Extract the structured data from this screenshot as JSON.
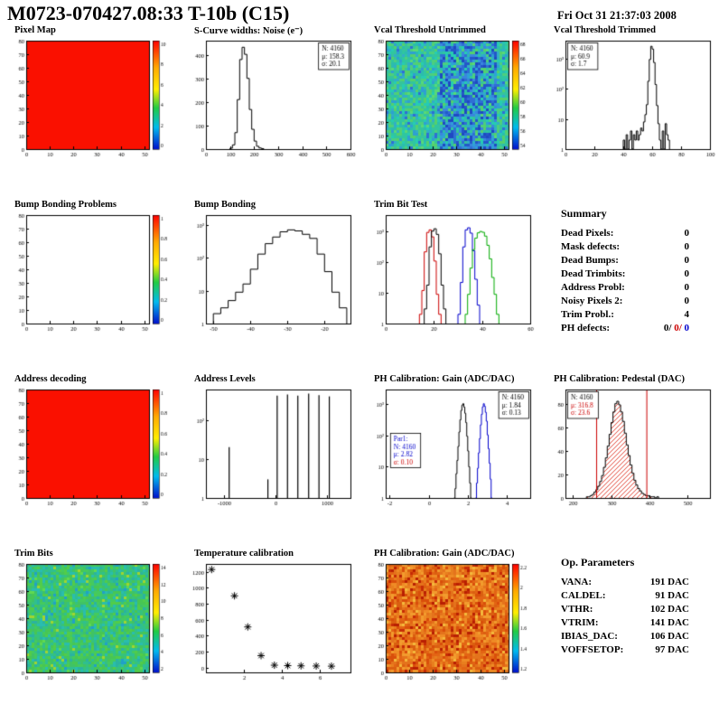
{
  "header": {
    "title": "M0723-070427.08:33 T-10b (C15)",
    "date": "Fri Oct 31 21:37:03 2008"
  },
  "summary": {
    "title": "Summary",
    "rows": [
      {
        "label": "Dead Pixels:",
        "value": "0"
      },
      {
        "label": "Mask defects:",
        "value": "0"
      },
      {
        "label": "Dead Bumps:",
        "value": "0"
      },
      {
        "label": "Dead Trimbits:",
        "value": "0"
      },
      {
        "label": "Address Probl:",
        "value": "0"
      },
      {
        "label": "Noisy Pixels 2:",
        "value": "0"
      },
      {
        "label": "Trim Probl.:",
        "value": "4"
      }
    ],
    "ph_defects": {
      "label": "PH defects:",
      "parts": [
        {
          "text": "0/",
          "color": "#000000"
        },
        {
          "text": " 0/",
          "color": "#cc0000"
        },
        {
          "text": " 0",
          "color": "#0000cc"
        }
      ]
    }
  },
  "op_parameters": {
    "title": "Op. Parameters",
    "rows": [
      {
        "label": "VANA:",
        "value": "191 DAC"
      },
      {
        "label": "CALDEL:",
        "value": "91 DAC"
      },
      {
        "label": "VTHR:",
        "value": "102 DAC"
      },
      {
        "label": "VTRIM:",
        "value": "141 DAC"
      },
      {
        "label": "IBIAS_DAC:",
        "value": "106 DAC"
      },
      {
        "label": "VOFFSETOP:",
        "value": "97 DAC"
      }
    ]
  },
  "chart_data": [
    {
      "id": "pixel-map",
      "title": "Pixel Map",
      "type": "heatmap",
      "x": {
        "min": 0,
        "max": 52,
        "ticks": [
          0,
          10,
          20,
          30,
          40,
          50
        ]
      },
      "y": {
        "min": 0,
        "max": 80,
        "ticks": [
          0,
          10,
          20,
          30,
          40,
          50,
          60,
          70,
          80
        ]
      },
      "palette": {
        "base": [
          "#fa1000"
        ]
      },
      "colorbar": {
        "labels": [
          "10",
          "8",
          "6",
          "4",
          "2",
          "0"
        ]
      }
    },
    {
      "id": "scurve-noise",
      "title": "S-Curve widths: Noise (e⁻)",
      "type": "hist",
      "x": {
        "min": 0,
        "max": 600,
        "ticks": [
          0,
          100,
          200,
          300,
          400,
          500,
          600
        ]
      },
      "y": {
        "min": 0,
        "max": 460,
        "ticks": [
          0,
          100,
          200,
          300,
          400
        ]
      },
      "series": [
        {
          "name": "noise",
          "color": "#000000",
          "bins": {
            "x0": 100,
            "dx": 10,
            "values": [
              4,
              18,
              70,
              210,
              380,
              432,
              402,
              300,
              168,
              84,
              34,
              12,
              5,
              2
            ]
          }
        }
      ],
      "stats": {
        "pos": "tr",
        "lines": [
          {
            "text": "N: 4160",
            "color": "#000000"
          },
          {
            "text": "μ: 158.3",
            "color": "#000000"
          },
          {
            "text": "σ: 20.1",
            "color": "#000000"
          }
        ]
      }
    },
    {
      "id": "vcal-untrimmed",
      "title": "Vcal Threshold Untrimmed",
      "type": "heatmap",
      "x": {
        "min": 0,
        "max": 52,
        "ticks": [
          0,
          10,
          20,
          30,
          40,
          50
        ]
      },
      "y": {
        "min": 0,
        "max": 80,
        "ticks": [
          0,
          10,
          20,
          30,
          40,
          50,
          60,
          70,
          80
        ]
      },
      "palette": {
        "base": [
          "#35c49b",
          "#2bbcae",
          "#2fc6a0",
          "#4ccf7f",
          "#31aec7",
          "#2e9fd2",
          "#54d06d",
          "#26ccb2"
        ],
        "accent": [
          "#2f6fd4",
          "#2457c9",
          "#3a86dd",
          "#1f49c2",
          "#2fa0d8"
        ],
        "accent_zone": [
          0.42,
          0.9
        ],
        "accent_prob": 0.55,
        "speckle": [
          "#2f6fd4",
          "#58d977"
        ],
        "speckle_prob": 0.1
      },
      "colorbar": {
        "labels": [
          "68",
          "66",
          "64",
          "62",
          "60",
          "58",
          "56",
          "54"
        ]
      }
    },
    {
      "id": "vcal-trimmed",
      "title": "Vcal Threshold Trimmed",
      "type": "hist",
      "x": {
        "min": 0,
        "max": 100,
        "ticks": [
          0,
          20,
          40,
          60,
          80,
          100
        ]
      },
      "y": {
        "min": 1,
        "max": 4000,
        "scale": "log",
        "decades": [
          [
            1,
            "1"
          ],
          [
            10,
            "10"
          ],
          [
            100,
            "10²"
          ],
          [
            1000,
            "10³"
          ]
        ]
      },
      "series": [
        {
          "name": "threshold",
          "color": "#000000",
          "bins": {
            "x0": 40,
            "dx": 1,
            "values": [
              2,
              0,
              3,
              0,
              2,
              4,
              1,
              3,
              2,
              4,
              2,
              3,
              5,
              4,
              8,
              14,
              30,
              180,
              950,
              2600,
              2100,
              750,
              140,
              28,
              7,
              2,
              0,
              4,
              0,
              7,
              3,
              2
            ]
          }
        }
      ],
      "stats": {
        "pos": "tl",
        "lines": [
          {
            "text": "N: 4160",
            "color": "#000000"
          },
          {
            "text": "μ: 60.9",
            "color": "#000000"
          },
          {
            "text": "σ: 1.7",
            "color": "#000000"
          }
        ]
      }
    },
    {
      "id": "bump-problems",
      "title": "Bump Bonding Problems",
      "type": "empty",
      "x": {
        "min": 0,
        "max": 52,
        "ticks": [
          0,
          10,
          20,
          30,
          40,
          50
        ]
      },
      "y": {
        "min": 0,
        "max": 80,
        "ticks": [
          0,
          10,
          20,
          30,
          40,
          50,
          60,
          70,
          80
        ]
      },
      "colorbar": {
        "labels": [
          "1",
          "0.8",
          "0.6",
          "0.4",
          "0.2",
          "0"
        ]
      }
    },
    {
      "id": "bump-bonding",
      "title": "Bump Bonding",
      "type": "hist",
      "x": {
        "min": -52,
        "max": -13,
        "ticks": [
          -50,
          -40,
          -30,
          -20
        ]
      },
      "y": {
        "min": 1,
        "max": 2000,
        "scale": "log",
        "decades": [
          [
            1,
            "1"
          ],
          [
            10,
            "10"
          ],
          [
            100,
            "10²"
          ],
          [
            1000,
            "10³"
          ]
        ]
      },
      "series": [
        {
          "name": "bump",
          "color": "#000000",
          "bins": {
            "x0": -50,
            "dx": 2,
            "values": [
              2,
              3,
              5,
              9,
              16,
              45,
              130,
              270,
              430,
              620,
              710,
              660,
              520,
              390,
              130,
              38,
              9,
              3
            ]
          }
        }
      ]
    },
    {
      "id": "trim-bit-test",
      "title": "Trim Bit Test",
      "type": "hist",
      "x": {
        "min": 0,
        "max": 60,
        "ticks": [
          0,
          20,
          40,
          60
        ]
      },
      "y": {
        "min": 1,
        "max": 3500,
        "scale": "log",
        "decades": [
          [
            1,
            "1"
          ],
          [
            10,
            "10"
          ],
          [
            100,
            "10²"
          ],
          [
            1000,
            "10³"
          ]
        ]
      },
      "series": [
        {
          "name": "trim-red",
          "color": "#cc0000",
          "bins": {
            "x0": 14,
            "dx": 1,
            "values": [
              2,
              12,
              220,
              950,
              1150,
              680,
              110,
              9,
              2
            ]
          }
        },
        {
          "name": "trim-black",
          "color": "#000000",
          "bins": {
            "x0": 16,
            "dx": 1,
            "values": [
              3,
              18,
              320,
              1050,
              1250,
              820,
              190,
              18,
              3
            ]
          }
        },
        {
          "name": "trim-blue",
          "color": "#0000cc",
          "bins": {
            "x0": 30,
            "dx": 1,
            "values": [
              2,
              22,
              320,
              1150,
              1350,
              900,
              240,
              28,
              4
            ]
          }
        },
        {
          "name": "trim-green",
          "color": "#00aa00",
          "bins": {
            "x0": 33,
            "dx": 1,
            "values": [
              2,
              9,
              65,
              260,
              620,
              920,
              1020,
              960,
              720,
              360,
              130,
              32,
              9,
              2
            ]
          }
        }
      ]
    },
    {
      "id": "address-decoding",
      "title": "Address decoding",
      "type": "heatmap",
      "x": {
        "min": 0,
        "max": 52,
        "ticks": [
          0,
          10,
          20,
          30,
          40,
          50
        ]
      },
      "y": {
        "min": 0,
        "max": 80,
        "ticks": [
          0,
          10,
          20,
          30,
          40,
          50,
          60,
          70,
          80
        ]
      },
      "palette": {
        "base": [
          "#fa1000"
        ]
      },
      "colorbar": {
        "labels": [
          "1",
          "0.8",
          "0.6",
          "0.4",
          "0.2",
          "0"
        ]
      }
    },
    {
      "id": "address-levels",
      "title": "Address Levels",
      "type": "spikes",
      "x": {
        "min": -1350,
        "max": 1450,
        "ticks": [
          -1000,
          0,
          1000
        ]
      },
      "y": {
        "min": 1,
        "max": 600,
        "scale": "log",
        "decades": [
          [
            1,
            "1"
          ],
          [
            10,
            "10"
          ],
          [
            100,
            "10²"
          ]
        ]
      },
      "spikes": [
        [
          -900,
          20
        ],
        [
          -150,
          3
        ],
        [
          30,
          420
        ],
        [
          230,
          450
        ],
        [
          430,
          420
        ],
        [
          640,
          470
        ],
        [
          840,
          430
        ],
        [
          1040,
          400
        ]
      ]
    },
    {
      "id": "ph-gain-hist",
      "title": "PH Calibration: Gain (ADC/DAC)",
      "type": "hist",
      "x": {
        "min": -2.2,
        "max": 5.2,
        "ticks": [
          -2,
          0,
          2,
          4
        ]
      },
      "y": {
        "min": 1,
        "max": 3000,
        "scale": "log",
        "decades": [
          [
            1,
            "1"
          ],
          [
            10,
            "10"
          ],
          [
            100,
            "10²"
          ],
          [
            1000,
            "10³"
          ]
        ]
      },
      "series": [
        {
          "name": "gain-par0",
          "color": "#000000",
          "bins": {
            "x0": 1.3,
            "dx": 0.05,
            "values": [
              1,
              2,
              6,
              16,
              45,
              130,
              320,
              640,
              950,
              1050,
              820,
              520,
              260,
              95,
              32,
              10,
              3,
              1
            ]
          }
        },
        {
          "name": "gain-par1",
          "color": "#0000cc",
          "bins": {
            "x0": 2.4,
            "dx": 0.05,
            "values": [
              1,
              3,
              9,
              28,
              80,
              220,
              480,
              830,
              1050,
              870,
              560,
              290,
              105,
              38,
              13,
              4,
              1
            ]
          }
        }
      ],
      "stats": {
        "pos": "tr",
        "lines": [
          {
            "text": "N: 4160",
            "color": "#000000"
          },
          {
            "text": "μ: 1.84",
            "color": "#000000"
          },
          {
            "text": "σ: 0.13",
            "color": "#000000"
          }
        ]
      },
      "stats2": {
        "fx": 0.03,
        "fy": 0.4,
        "lines": [
          {
            "text": "Par1:",
            "color": "#0000cc"
          },
          {
            "text": "N: 4160",
            "color": "#0000cc"
          },
          {
            "text": "μ: 2.82",
            "color": "#0000cc"
          },
          {
            "text": "σ: 0.10",
            "color": "#cc0000"
          }
        ]
      }
    },
    {
      "id": "ph-pedestal",
      "title": "PH Calibration: Pedestal (DAC)",
      "type": "hist",
      "x": {
        "min": 180,
        "max": 560,
        "ticks": [
          200,
          300,
          400,
          500
        ]
      },
      "y": {
        "min": 0,
        "max": 92,
        "ticks": [
          0,
          20,
          40,
          60,
          80
        ]
      },
      "series": [
        {
          "name": "pedestal",
          "color": "#000000",
          "fill": "hatch",
          "bins": {
            "x0": 235,
            "dx": 5,
            "values": [
              1,
              1,
              2,
              3,
              5,
              7,
              10,
              14,
              19,
              26,
              34,
              44,
              54,
              64,
              73,
              80,
              82,
              79,
              73,
              65,
              55,
              45,
              36,
              28,
              21,
              15,
              11,
              8,
              6,
              4,
              3,
              2,
              2,
              1,
              1,
              1,
              0,
              1
            ]
          }
        }
      ],
      "vlines": [
        {
          "x": 262,
          "color": "#cc0000"
        },
        {
          "x": 394,
          "color": "#cc0000"
        }
      ],
      "stats": {
        "pos": "tl",
        "lines": [
          {
            "text": "N: 4160",
            "color": "#000000"
          },
          {
            "text": "μ: 316.8",
            "color": "#cc0000"
          },
          {
            "text": "σ: 23.6",
            "color": "#cc0000"
          }
        ]
      }
    },
    {
      "id": "trim-bits-map",
      "title": "Trim Bits",
      "type": "heatmap",
      "x": {
        "min": 0,
        "max": 52,
        "ticks": [
          0,
          10,
          20,
          30,
          40,
          50
        ]
      },
      "y": {
        "min": 0,
        "max": 80,
        "ticks": [
          0,
          10,
          20,
          30,
          40,
          50,
          60,
          70,
          80
        ]
      },
      "palette": {
        "base": [
          "#3fc266",
          "#2fbf8f",
          "#47c654",
          "#2ab3a0",
          "#52cc49",
          "#36c27c",
          "#29bdae",
          "#44ca5e"
        ],
        "speckle": [
          "#9fd530",
          "#20a0c8",
          "#60d94f"
        ],
        "speckle_prob": 0.08
      },
      "colorbar": {
        "labels": [
          "14",
          "12",
          "10",
          "8",
          "6",
          "4",
          "2"
        ]
      }
    },
    {
      "id": "temperature-calibration",
      "title": "Temperature calibration",
      "type": "scatter",
      "x": {
        "min": 0,
        "max": 7.6,
        "ticks": [
          2,
          4,
          6
        ]
      },
      "y": {
        "min": -60,
        "max": 1300,
        "ticks": [
          0,
          200,
          400,
          600,
          800,
          1000,
          1200
        ]
      },
      "points": [
        [
          0.3,
          1230
        ],
        [
          1.5,
          900
        ],
        [
          2.2,
          510
        ],
        [
          2.9,
          150
        ],
        [
          3.6,
          30
        ],
        [
          4.3,
          25
        ],
        [
          5.0,
          22
        ],
        [
          5.8,
          20
        ],
        [
          6.6,
          18
        ]
      ],
      "marker": "asterisk"
    },
    {
      "id": "ph-gain-map",
      "title": "PH Calibration: Gain (ADC/DAC)",
      "type": "heatmap",
      "x": {
        "min": 0,
        "max": 52,
        "ticks": [
          0,
          10,
          20,
          30,
          40,
          50
        ]
      },
      "y": {
        "min": 0,
        "max": 80,
        "ticks": [
          0,
          10,
          20,
          30,
          40,
          50,
          60,
          70,
          80
        ]
      },
      "palette": {
        "base": [
          "#e4731c",
          "#da5f10",
          "#ef8b25",
          "#d94e0a",
          "#f29c2e",
          "#e36414",
          "#e87f1e"
        ],
        "speckle": [
          "#c62b06",
          "#f4b93c",
          "#b81f02"
        ],
        "speckle_prob": 0.18
      },
      "colorbar": {
        "labels": [
          "2.2",
          "2",
          "1.8",
          "1.6",
          "1.4",
          "1.2"
        ]
      }
    }
  ]
}
